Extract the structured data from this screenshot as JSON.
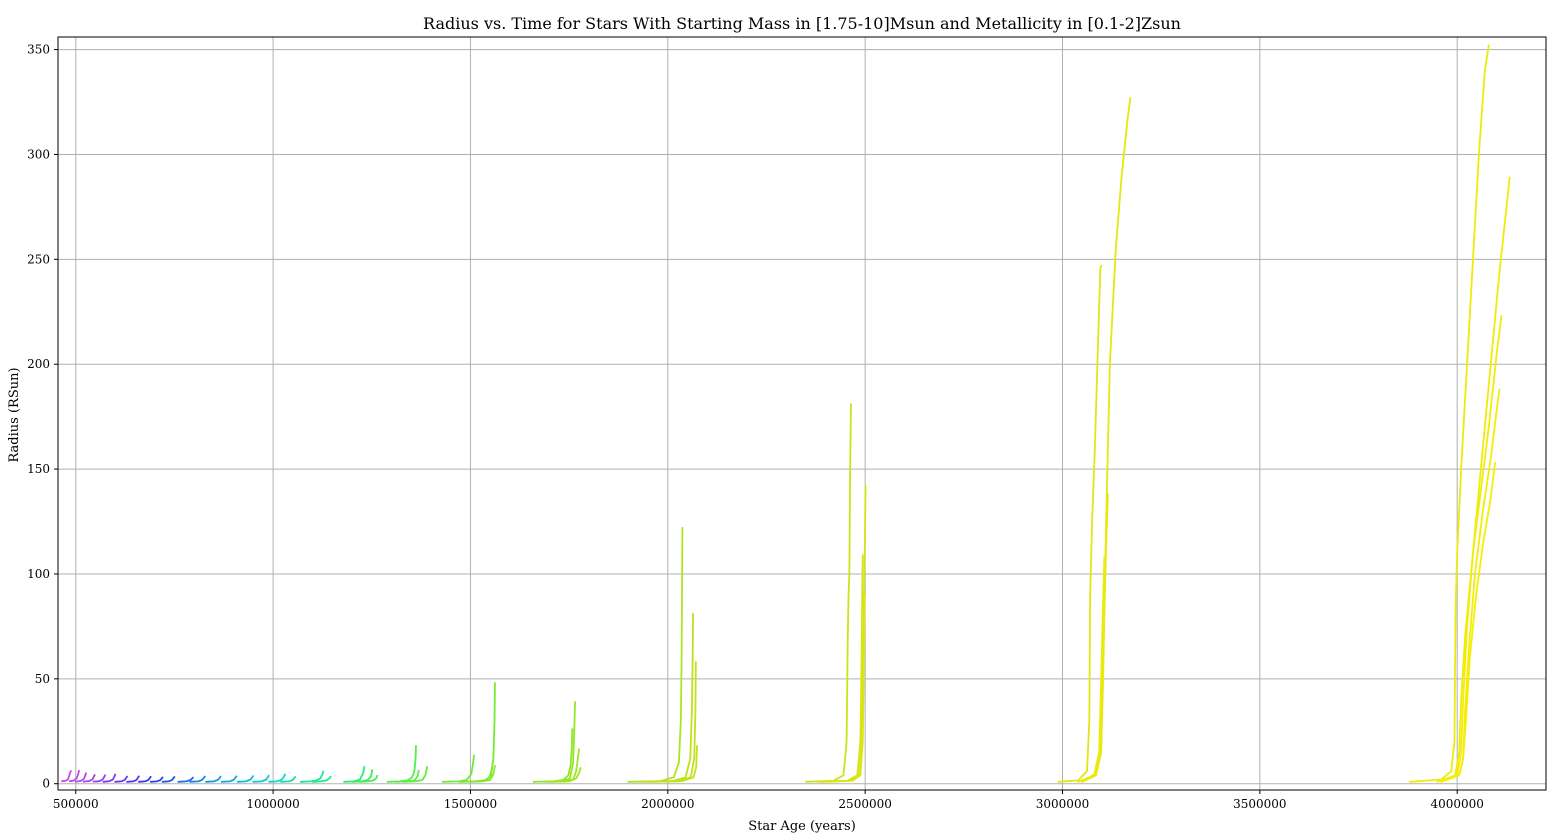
{
  "chart_data": {
    "type": "line",
    "title": "Radius vs. Time for Stars With Starting Mass in [1.75-10]Msun and Metallicity in [0.1-2]Zsun",
    "xlabel": "Star Age (years)",
    "ylabel": "Radius (RSun)",
    "xlim": [
      455000,
      4225000
    ],
    "ylim": [
      -3,
      356
    ],
    "x_ticks": [
      500000,
      1000000,
      1500000,
      2000000,
      2500000,
      3000000,
      3500000,
      4000000
    ],
    "x_tick_labels": [
      "500000",
      "1000000",
      "1500000",
      "2000000",
      "2500000",
      "3000000",
      "3500000",
      "4000000"
    ],
    "y_ticks": [
      0,
      50,
      100,
      150,
      200,
      250,
      300,
      350
    ],
    "y_tick_labels": [
      "0",
      "50",
      "100",
      "150",
      "200",
      "250",
      "300",
      "350"
    ],
    "grid": true,
    "legend": "none",
    "series": [
      {
        "color": "#c84be8",
        "x": [
          465000,
          475000,
          480000,
          483000,
          486000,
          488000
        ],
        "y": [
          1.2,
          1.4,
          2.0,
          3.5,
          5.5,
          6.0
        ]
      },
      {
        "color": "#bd48ea",
        "x": [
          485000,
          495000,
          502000,
          506000,
          508000
        ],
        "y": [
          1.2,
          1.5,
          2.5,
          4.5,
          6.2
        ]
      },
      {
        "color": "#b245ec",
        "x": [
          500000,
          512000,
          520000,
          524000,
          526000
        ],
        "y": [
          1.0,
          1.3,
          2.2,
          3.8,
          5.0
        ]
      },
      {
        "color": "#a342ee",
        "x": [
          520000,
          535000,
          542000,
          546000,
          548000
        ],
        "y": [
          1.0,
          1.3,
          2.0,
          3.5,
          4.2
        ]
      },
      {
        "color": "#923ef0",
        "x": [
          545000,
          560000,
          568000,
          572000,
          574000
        ],
        "y": [
          1.0,
          1.2,
          2.0,
          3.2,
          4.0
        ]
      },
      {
        "color": "#7f3bf1",
        "x": [
          570000,
          585000,
          594000,
          598000,
          600000
        ],
        "y": [
          0.9,
          1.2,
          2.0,
          3.5,
          4.4
        ]
      },
      {
        "color": "#6a38f2",
        "x": [
          600000,
          615000,
          624000,
          628000,
          630000
        ],
        "y": [
          0.9,
          1.1,
          1.8,
          2.8,
          3.4
        ]
      },
      {
        "color": "#5437f3",
        "x": [
          630000,
          645000,
          654000,
          658000,
          660000
        ],
        "y": [
          0.9,
          1.1,
          1.8,
          3.0,
          3.5
        ]
      },
      {
        "color": "#3c38f3",
        "x": [
          660000,
          675000,
          684000,
          688000,
          690000
        ],
        "y": [
          0.9,
          1.1,
          1.8,
          2.8,
          3.3
        ]
      },
      {
        "color": "#2b45f2",
        "x": [
          690000,
          705000,
          714000,
          718000,
          720000
        ],
        "y": [
          0.9,
          1.1,
          1.7,
          2.6,
          3.0
        ]
      },
      {
        "color": "#2057f0",
        "x": [
          720000,
          735000,
          744000,
          748000,
          750000
        ],
        "y": [
          0.9,
          1.1,
          1.8,
          2.8,
          3.2
        ]
      },
      {
        "color": "#1a6cef",
        "x": [
          760000,
          780000,
          790000,
          795000,
          797000
        ],
        "y": [
          0.9,
          1.1,
          1.7,
          2.5,
          2.9
        ]
      },
      {
        "color": "#1585ed",
        "x": [
          790000,
          810000,
          820000,
          825000,
          827000
        ],
        "y": [
          0.9,
          1.1,
          1.8,
          2.9,
          3.4
        ]
      },
      {
        "color": "#1199ea",
        "x": [
          830000,
          850000,
          860000,
          865000,
          867000
        ],
        "y": [
          0.9,
          1.1,
          1.8,
          2.8,
          3.4
        ]
      },
      {
        "color": "#0eabe6",
        "x": [
          870000,
          890000,
          900000,
          905000,
          907000
        ],
        "y": [
          0.9,
          1.1,
          1.8,
          3.0,
          3.5
        ]
      },
      {
        "color": "#0cbce1",
        "x": [
          910000,
          930000,
          942000,
          947000,
          949000
        ],
        "y": [
          0.9,
          1.1,
          1.9,
          3.0,
          3.6
        ]
      },
      {
        "color": "#0dcbd7",
        "x": [
          950000,
          970000,
          982000,
          987000,
          989000
        ],
        "y": [
          0.9,
          1.1,
          1.9,
          3.2,
          3.8
        ]
      },
      {
        "color": "#0fd7c7",
        "x": [
          990000,
          1010000,
          1022000,
          1028000,
          1030000
        ],
        "y": [
          0.9,
          1.1,
          2.0,
          3.5,
          4.4
        ]
      },
      {
        "color": "#12e0b4",
        "x": [
          1020000,
          1040000,
          1050000,
          1054000,
          1056000
        ],
        "y": [
          0.9,
          1.1,
          1.8,
          2.8,
          3.2
        ]
      },
      {
        "color": "#16e79c",
        "x": [
          1070000,
          1095000,
          1110000,
          1120000,
          1125000,
          1127000
        ],
        "y": [
          0.9,
          1.1,
          1.6,
          2.6,
          4.5,
          5.8
        ]
      },
      {
        "color": "#1deb82",
        "x": [
          1100000,
          1120000,
          1135000,
          1143000,
          1146000
        ],
        "y": [
          0.9,
          1.1,
          1.6,
          2.6,
          3.4
        ]
      },
      {
        "color": "#2aee6b",
        "x": [
          1180000,
          1205000,
          1220000,
          1228000,
          1231000
        ],
        "y": [
          0.9,
          1.1,
          2.0,
          5.0,
          8.0
        ]
      },
      {
        "color": "#38ef5c",
        "x": [
          1200000,
          1225000,
          1240000,
          1248000,
          1251000
        ],
        "y": [
          0.9,
          1.1,
          1.8,
          3.5,
          6.5
        ]
      },
      {
        "color": "#45ef52",
        "x": [
          1220000,
          1240000,
          1255000,
          1262000,
          1264000
        ],
        "y": [
          0.9,
          1.1,
          1.6,
          2.8,
          3.8
        ]
      },
      {
        "color": "#52ef4b",
        "x": [
          1290000,
          1320000,
          1340000,
          1352000,
          1358000,
          1361000,
          1362000
        ],
        "y": [
          0.9,
          1.1,
          1.6,
          3.0,
          6.0,
          12.0,
          18.0
        ]
      },
      {
        "color": "#5bee45",
        "x": [
          1310000,
          1340000,
          1358000,
          1366000,
          1369000
        ],
        "y": [
          0.9,
          1.1,
          1.6,
          3.5,
          6.2
        ]
      },
      {
        "color": "#64ed3f",
        "x": [
          1330000,
          1360000,
          1378000,
          1386000,
          1390000
        ],
        "y": [
          0.9,
          1.1,
          1.8,
          4.0,
          8.0
        ]
      },
      {
        "color": "#6eec38",
        "x": [
          1430000,
          1470000,
          1490000,
          1502000,
          1506000,
          1509000
        ],
        "y": [
          0.9,
          1.1,
          1.8,
          4.5,
          9.0,
          13.5
        ]
      },
      {
        "color": "#76eb33",
        "x": [
          1480000,
          1520000,
          1540000,
          1552000,
          1558000,
          1561000,
          1562000
        ],
        "y": [
          0.9,
          1.1,
          1.7,
          4.0,
          12.0,
          30.0,
          48.0
        ]
      },
      {
        "color": "#7eea2f",
        "x": [
          1470000,
          1510000,
          1535000,
          1548000,
          1554000,
          1557000
        ],
        "y": [
          0.9,
          1.1,
          1.6,
          3.0,
          6.5,
          10.5
        ]
      },
      {
        "color": "#86e92c",
        "x": [
          1500000,
          1530000,
          1550000,
          1558000,
          1562000
        ],
        "y": [
          0.9,
          1.1,
          1.8,
          4.5,
          8.5
        ]
      },
      {
        "color": "#8fe829",
        "x": [
          1660000,
          1710000,
          1735000,
          1748000,
          1754000,
          1757000,
          1758000,
          1759000
        ],
        "y": [
          0.9,
          1.1,
          1.8,
          4.0,
          9.0,
          18.0,
          26.0,
          25.0
        ]
      },
      {
        "color": "#97e726",
        "x": [
          1690000,
          1730000,
          1752000,
          1760000,
          1763000,
          1765000
        ],
        "y": [
          0.9,
          1.1,
          2.5,
          10.0,
          25.0,
          39.0
        ]
      },
      {
        "color": "#9fe623",
        "x": [
          1700000,
          1740000,
          1760000,
          1768000,
          1772000,
          1775000
        ],
        "y": [
          0.9,
          1.1,
          2.0,
          6.0,
          12.0,
          16.5
        ]
      },
      {
        "color": "#a7e521",
        "x": [
          1710000,
          1750000,
          1768000,
          1776000,
          1779000
        ],
        "y": [
          0.9,
          1.1,
          2.5,
          5.5,
          7.5
        ]
      },
      {
        "color": "#b0e41f",
        "x": [
          1900000,
          1980000,
          2015000,
          2028000,
          2033000,
          2035000,
          2036000,
          2037000
        ],
        "y": [
          0.9,
          1.2,
          3.0,
          10.0,
          30.0,
          60.0,
          90.0,
          122.0
        ]
      },
      {
        "color": "#b8e31d",
        "x": [
          1930000,
          2010000,
          2045000,
          2057000,
          2061000,
          2063000,
          2064000
        ],
        "y": [
          0.9,
          1.2,
          3.0,
          12.0,
          35.0,
          60.0,
          81.0
        ]
      },
      {
        "color": "#bfe21b",
        "x": [
          1950000,
          2025000,
          2058000,
          2067000,
          2070000,
          2071000
        ],
        "y": [
          0.9,
          1.2,
          3.0,
          12.0,
          35.0,
          58.0
        ]
      },
      {
        "color": "#c5e219",
        "x": [
          1960000,
          2035000,
          2065000,
          2072000,
          2074000
        ],
        "y": [
          0.9,
          1.2,
          3.0,
          8.0,
          18.0
        ]
      },
      {
        "color": "#cce317",
        "x": [
          2350000,
          2420000,
          2445000,
          2453000,
          2456000,
          2458000,
          2460000,
          2462000,
          2464000
        ],
        "y": [
          0.9,
          1.4,
          4.0,
          20.0,
          70.0,
          90.0,
          100.0,
          150.0,
          181.0
        ]
      },
      {
        "color": "#d2e416",
        "x": [
          2390000,
          2460000,
          2485000,
          2492000,
          2495000,
          2497000,
          2499000,
          2501000
        ],
        "y": [
          0.9,
          1.4,
          4.0,
          20.0,
          60.0,
          90.0,
          110.0,
          142.0
        ]
      },
      {
        "color": "#d8e514",
        "x": [
          2380000,
          2455000,
          2480000,
          2488000,
          2491000,
          2493000,
          2494000
        ],
        "y": [
          0.9,
          1.4,
          4.0,
          20.0,
          60.0,
          100.0,
          109.0
        ]
      },
      {
        "color": "#dde612",
        "x": [
          2400000,
          2468000,
          2488000,
          2494000,
          2497000,
          2499000
        ],
        "y": [
          0.9,
          1.4,
          4.0,
          20.0,
          60.0,
          90.0
        ]
      },
      {
        "color": "#e1e710",
        "x": [
          2990000,
          3040000,
          3062000,
          3068000,
          3070000,
          3075000,
          3082000,
          3090000,
          3096000,
          3099000
        ],
        "y": [
          0.9,
          1.6,
          6.0,
          30.0,
          90.0,
          125.0,
          160.0,
          210.0,
          246.0,
          247.0
        ]
      },
      {
        "color": "#e5e80e",
        "x": [
          3050000,
          3085000,
          3098000,
          3103000,
          3110000,
          3120000,
          3135000,
          3150000,
          3165000,
          3172000
        ],
        "y": [
          0.9,
          5.0,
          20.0,
          60.0,
          120.0,
          200.0,
          255.0,
          290.0,
          317.0,
          327.0
        ]
      },
      {
        "color": "#e8e90c",
        "x": [
          3050000,
          3085000,
          3098000,
          3103000,
          3106000,
          3110000,
          3115000
        ],
        "y": [
          0.9,
          4.0,
          15.0,
          50.0,
          80.0,
          110.0,
          138.0
        ]
      },
      {
        "color": "#ebea0a",
        "x": [
          3040000,
          3080000,
          3093000,
          3098000,
          3102000,
          3106000
        ],
        "y": [
          0.9,
          4.0,
          15.0,
          50.0,
          80.0,
          108.0
        ]
      },
      {
        "color": "#eeeb08",
        "x": [
          3880000,
          3960000,
          3985000,
          3993000,
          3996000,
          4000000,
          4010000,
          4025000,
          4040000,
          4055000,
          4070000,
          4080000
        ],
        "y": [
          0.9,
          2.0,
          6.0,
          20.0,
          85.0,
          110.0,
          150.0,
          200.0,
          250.0,
          300.0,
          340.0,
          352.0
        ]
      },
      {
        "color": "#f0ec07",
        "x": [
          3950000,
          3995000,
          4005000,
          4010000,
          4020000,
          4035000,
          4055000,
          4080000,
          4105000,
          4125000,
          4133000
        ],
        "y": [
          0.9,
          4.0,
          15.0,
          40.0,
          70.0,
          100.0,
          140.0,
          190.0,
          240.0,
          275.0,
          289.0
        ]
      },
      {
        "color": "#f2ed06",
        "x": [
          3960000,
          4000000,
          4010000,
          4015000,
          4025000,
          4040000,
          4060000,
          4080000,
          4100000,
          4112000
        ],
        "y": [
          0.9,
          4.0,
          15.0,
          40.0,
          75.0,
          110.0,
          140.0,
          170.0,
          205.0,
          223.0
        ]
      },
      {
        "color": "#f4ee05",
        "x": [
          3960000,
          4005000,
          4015000,
          4020000,
          4030000,
          4045000,
          4065000,
          4085000,
          4100000,
          4107000
        ],
        "y": [
          0.9,
          4.0,
          12.0,
          35.0,
          65.0,
          100.0,
          130.0,
          155.0,
          178.0,
          188.0
        ]
      },
      {
        "color": "#f5ef04",
        "x": [
          3960000,
          4005000,
          4015000,
          4022000,
          4032000,
          4048000,
          4066000,
          4084000,
          4096000
        ],
        "y": [
          0.9,
          4.0,
          12.0,
          30.0,
          60.0,
          90.0,
          115.0,
          135.0,
          153.0
        ]
      }
    ]
  }
}
